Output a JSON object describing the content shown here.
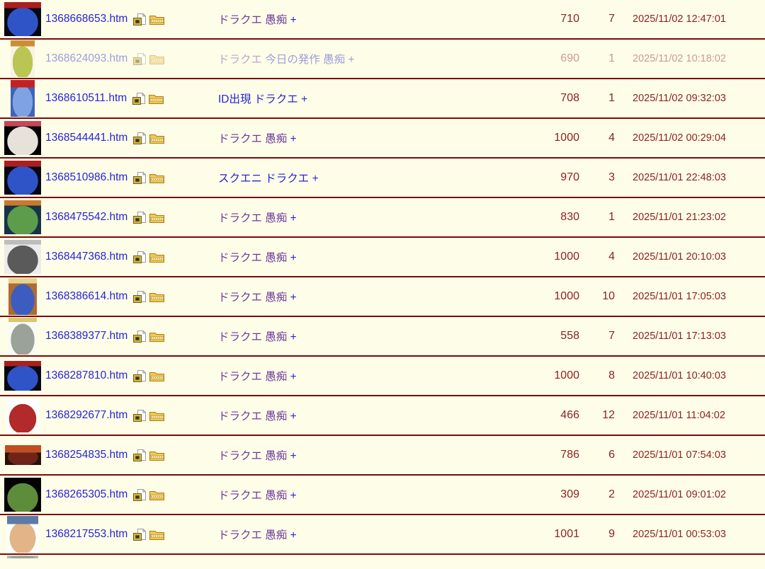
{
  "page": {
    "background": "#fefee8",
    "divider_color": "#7c0a0a",
    "link_color": "#2424d8",
    "visited_link_color": "#6d3a9e",
    "count_color": "#8c1f1f"
  },
  "icons": {
    "image_file_icon": "image-file",
    "zip_folder_icon": "zip-folder"
  },
  "rows": [
    {
      "file": "1368668653.htm",
      "title_parts": [
        {
          "text": "ドラクエ 愚痴",
          "visited": true
        }
      ],
      "plus": "+",
      "num1": "710",
      "num2": "7",
      "date": "2025/11/02 12:47:01",
      "dimmed": false,
      "thumb": {
        "name": "dark-pixel-logo-blue-hero",
        "w": 52,
        "h": 48,
        "colors": [
          "#060812",
          "#2f54c8",
          "#aa1f1f"
        ],
        "band_pct": 18
      }
    },
    {
      "file": "1368624093.htm",
      "title_parts": [
        {
          "text": "ドラクエ",
          "visited": true
        },
        {
          "text": "今日の発作 愚痴",
          "visited": false
        }
      ],
      "plus": "+",
      "num1": "690",
      "num2": "1",
      "date": "2025/11/02 10:18:02",
      "dimmed": true,
      "thumb": {
        "name": "princess-character-light",
        "w": 34,
        "h": 52,
        "colors": [
          "#f7f3e4",
          "#b9c653",
          "#c98f35"
        ],
        "band_pct": 16
      }
    },
    {
      "file": "1368610511.htm",
      "title_parts": [
        {
          "text": "ID出現 ドラクエ",
          "visited": false
        }
      ],
      "plus": "+",
      "num1": "708",
      "num2": "1",
      "date": "2025/11/02 09:32:03",
      "dimmed": false,
      "thumb": {
        "name": "game-box-art-blue",
        "w": 34,
        "h": 52,
        "colors": [
          "#3e63b8",
          "#7fa3e0",
          "#c32222"
        ],
        "band_pct": 20
      }
    },
    {
      "file": "1368544441.htm",
      "title_parts": [
        {
          "text": "ドラクエ 愚痴",
          "visited": true
        }
      ],
      "plus": "+",
      "num1": "1000",
      "num2": "4",
      "date": "2025/11/02 00:29:04",
      "dimmed": false,
      "thumb": {
        "name": "red-hood-priest-on-black",
        "w": 52,
        "h": 48,
        "colors": [
          "#020202",
          "#e6e2da",
          "#c5485a"
        ],
        "band_pct": 16
      }
    },
    {
      "file": "1368510986.htm",
      "title_parts": [
        {
          "text": "スクエニ ドラクエ",
          "visited": false
        }
      ],
      "plus": "+",
      "num1": "970",
      "num2": "3",
      "date": "2025/11/01 22:48:03",
      "dimmed": false,
      "thumb": {
        "name": "dark-pixel-logo-blue-hero",
        "w": 52,
        "h": 48,
        "colors": [
          "#060812",
          "#2f54c8",
          "#aa1f1f"
        ],
        "band_pct": 18
      }
    },
    {
      "file": "1368475542.htm",
      "title_parts": [
        {
          "text": "ドラクエ 愚痴",
          "visited": true
        }
      ],
      "plus": "+",
      "num1": "830",
      "num2": "1",
      "date": "2025/11/01 21:23:02",
      "dimmed": false,
      "thumb": {
        "name": "prince-green-armor-dark-teal",
        "w": 52,
        "h": 48,
        "colors": [
          "#15344a",
          "#5d9c4a",
          "#c97a2e"
        ],
        "band_pct": 16
      }
    },
    {
      "file": "1368447368.htm",
      "title_parts": [
        {
          "text": "ドラクエ 愚痴",
          "visited": true
        }
      ],
      "plus": "+",
      "num1": "1000",
      "num2": "4",
      "date": "2025/11/01 20:10:03",
      "dimmed": false,
      "thumb": {
        "name": "manga-face-grayscale",
        "w": 52,
        "h": 48,
        "colors": [
          "#ececec",
          "#5a5a5a",
          "#bdbdbd"
        ],
        "band_pct": 14
      }
    },
    {
      "file": "1368386614.htm",
      "title_parts": [
        {
          "text": "ドラクエ 愚痴",
          "visited": true
        }
      ],
      "plus": "+",
      "num1": "1000",
      "num2": "10",
      "date": "2025/11/01 17:05:03",
      "dimmed": false,
      "thumb": {
        "name": "blue-warrior-illustration",
        "w": 40,
        "h": 52,
        "colors": [
          "#b06a30",
          "#3c5cc0",
          "#e3d492"
        ],
        "band_pct": 14
      }
    },
    {
      "file": "1368389377.htm",
      "title_parts": [
        {
          "text": "ドラクエ 愚痴",
          "visited": true
        }
      ],
      "plus": "+",
      "num1": "558",
      "num2": "7",
      "date": "2025/11/01 17:13:03",
      "dimmed": false,
      "thumb": {
        "name": "sketch-two-characters",
        "w": 40,
        "h": 52,
        "colors": [
          "#fafaf4",
          "#9aa29a",
          "#d9c66e"
        ],
        "band_pct": 12
      }
    },
    {
      "file": "1368287810.htm",
      "title_parts": [
        {
          "text": "ドラクエ 愚痴",
          "visited": true
        }
      ],
      "plus": "+",
      "num1": "1000",
      "num2": "8",
      "date": "2025/11/01 10:40:03",
      "dimmed": false,
      "thumb": {
        "name": "dark-pixel-logo-blue-hero",
        "w": 52,
        "h": 42,
        "colors": [
          "#060812",
          "#2f54c8",
          "#aa1f1f"
        ],
        "band_pct": 18
      }
    },
    {
      "file": "1368292677.htm",
      "title_parts": [
        {
          "text": "ドラクエ 愚痴",
          "visited": true
        }
      ],
      "plus": "+",
      "num1": "466",
      "num2": "12",
      "date": "2025/11/01 11:04:02",
      "dimmed": false,
      "thumb": {
        "name": "red-dragon-on-white",
        "w": 46,
        "h": 48,
        "colors": [
          "#fdfdfd",
          "#b22a2a",
          "#5f1d1d"
        ],
        "band_pct": 0
      }
    },
    {
      "file": "1368254835.htm",
      "title_parts": [
        {
          "text": "ドラクエ 愚痴",
          "visited": true
        }
      ],
      "plus": "+",
      "num1": "786",
      "num2": "6",
      "date": "2025/11/01 07:54:03",
      "dimmed": false,
      "thumb": {
        "name": "dark-battle-screenshot-wide",
        "w": 51,
        "h": 28,
        "colors": [
          "#2a0f0a",
          "#6e2418",
          "#bf4f22"
        ],
        "band_pct": 38
      }
    },
    {
      "file": "1368265305.htm",
      "title_parts": [
        {
          "text": "ドラクエ 愚痴",
          "visited": true
        }
      ],
      "plus": "+",
      "num1": "309",
      "num2": "2",
      "date": "2025/11/01 09:01:02",
      "dimmed": false,
      "thumb": {
        "name": "green-troll-monster-on-black",
        "w": 52,
        "h": 48,
        "colors": [
          "#030303",
          "#5d8c3a",
          "#8fae4e"
        ],
        "band_pct": 0
      }
    },
    {
      "file": "1368217553.htm",
      "title_parts": [
        {
          "text": "ドラクエ 愚痴",
          "visited": true
        }
      ],
      "plus": "+",
      "num1": "1001",
      "num2": "9",
      "date": "2025/11/01 00:53:03",
      "dimmed": false,
      "thumb": {
        "name": "laughing-soldier-face",
        "w": 44,
        "h": 52,
        "colors": [
          "#fdfdfd",
          "#e2b488",
          "#5c7aa6"
        ],
        "band_pct": 22
      }
    }
  ],
  "partial_row": {
    "thumb": {
      "name": "next-thumbnail-sliver",
      "w": 44,
      "h": 4,
      "colors": [
        "#b4bcb4",
        "#9aa29a",
        "#c8ccc8"
      ],
      "band_pct": 0
    }
  }
}
